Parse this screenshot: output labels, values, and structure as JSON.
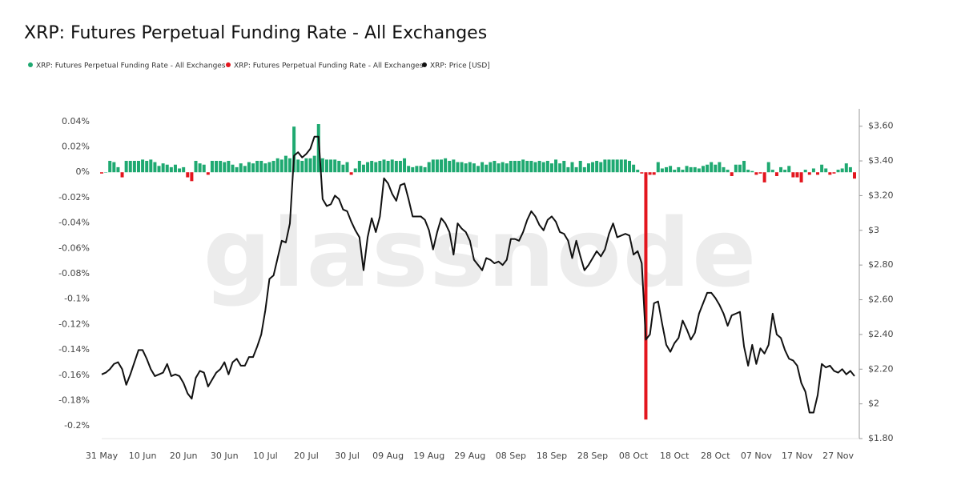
{
  "chart_data": {
    "type": "bar",
    "title": "XRP: Futures Perpetual Funding Rate - All Exchanges",
    "watermark": "glassnode",
    "categories": [
      "31 May",
      null,
      null,
      null,
      null,
      null,
      null,
      null,
      null,
      null,
      "10 Jun",
      null,
      null,
      null,
      null,
      null,
      null,
      null,
      null,
      null,
      "20 Jun",
      null,
      null,
      null,
      null,
      null,
      null,
      null,
      null,
      null,
      "30 Jun",
      null,
      null,
      null,
      null,
      null,
      null,
      null,
      null,
      null,
      "10 Jul",
      null,
      null,
      null,
      null,
      null,
      null,
      null,
      null,
      null,
      "20 Jul",
      null,
      null,
      null,
      null,
      null,
      null,
      null,
      null,
      null,
      "30 Jul",
      null,
      null,
      null,
      null,
      null,
      null,
      null,
      null,
      null,
      "09 Aug",
      null,
      null,
      null,
      null,
      null,
      null,
      null,
      null,
      null,
      "19 Aug",
      null,
      null,
      null,
      null,
      null,
      null,
      null,
      null,
      null,
      "29 Aug",
      null,
      null,
      null,
      null,
      null,
      null,
      null,
      null,
      null,
      "08 Sep",
      null,
      null,
      null,
      null,
      null,
      null,
      null,
      null,
      null,
      "18 Sep",
      null,
      null,
      null,
      null,
      null,
      null,
      null,
      null,
      null,
      "28 Sep",
      null,
      null,
      null,
      null,
      null,
      null,
      null,
      null,
      null,
      "08 Oct",
      null,
      null,
      null,
      null,
      null,
      null,
      null,
      null,
      null,
      "18 Oct",
      null,
      null,
      null,
      null,
      null,
      null,
      null,
      null,
      null,
      "28 Oct",
      null,
      null,
      null,
      null,
      null,
      null,
      null,
      null,
      null,
      "07 Nov",
      null,
      null,
      null,
      null,
      null,
      null,
      null,
      null,
      null,
      "17 Nov",
      null,
      null,
      null,
      null,
      null,
      null,
      null,
      null,
      null,
      "27 Nov",
      null,
      null,
      null,
      null
    ],
    "series": [
      {
        "name": "XRP: Futures Perpetual Funding Rate - All Exchanges",
        "type": "bar",
        "color": "#1fa971",
        "values": [
          null,
          0,
          0.009,
          0.008,
          0.004,
          null,
          0.009,
          0.009,
          0.009,
          0.009,
          0.01,
          0.009,
          0.01,
          0.008,
          0.005,
          0.007,
          0.006,
          0.004,
          0.006,
          0.003,
          0.004,
          null,
          null,
          0.009,
          0.007,
          0.006,
          null,
          0.009,
          0.009,
          0.009,
          0.008,
          0.009,
          0.006,
          0.004,
          0.007,
          0.005,
          0.008,
          0.007,
          0.009,
          0.009,
          0.007,
          0.008,
          0.009,
          0.011,
          0.01,
          0.013,
          0.011,
          0.036,
          0.01,
          0.009,
          0.011,
          0.011,
          0.013,
          0.038,
          0.011,
          0.01,
          0.01,
          0.01,
          0.009,
          0.006,
          0.008,
          null,
          0.003,
          0.009,
          0.006,
          0.008,
          0.009,
          0.008,
          0.009,
          0.01,
          0.009,
          0.01,
          0.009,
          0.009,
          0.011,
          0.005,
          0.004,
          0.005,
          0.005,
          0.004,
          0.008,
          0.01,
          0.01,
          0.01,
          0.011,
          0.009,
          0.01,
          0.008,
          0.008,
          0.007,
          0.008,
          0.007,
          0.005,
          0.008,
          0.006,
          0.008,
          0.009,
          0.007,
          0.008,
          0.007,
          0.009,
          0.009,
          0.009,
          0.01,
          0.009,
          0.009,
          0.008,
          0.009,
          0.008,
          0.009,
          0.007,
          0.01,
          0.007,
          0.009,
          0.004,
          0.008,
          0.004,
          0.009,
          0.004,
          0.007,
          0.008,
          0.009,
          0.008,
          0.01,
          0.01,
          0.01,
          0.01,
          0.01,
          0.01,
          0.009,
          0.006,
          0.002,
          null,
          null,
          null,
          null,
          0.008,
          0.003,
          0.004,
          0.005,
          0.002,
          0.004,
          0.002,
          0.005,
          0.004,
          0.004,
          0.003,
          0.005,
          0.006,
          0.008,
          0.006,
          0.008,
          0.004,
          0.002,
          null,
          0.006,
          0.006,
          0.009,
          0.002,
          0.001,
          null,
          null,
          null,
          0.008,
          0.002,
          null,
          0.004,
          0.002,
          0.005,
          null,
          null,
          null,
          0.002,
          null,
          0.003,
          null,
          0.006,
          0.003,
          null,
          null,
          0.002,
          0.003,
          0.007,
          0.004,
          null
        ]
      },
      {
        "name": "XRP: Futures Perpetual Funding Rate - All Exchanges",
        "type": "bar",
        "color": "#e3161e",
        "values": [
          -0.001,
          null,
          null,
          null,
          null,
          -0.004,
          null,
          null,
          null,
          null,
          null,
          null,
          null,
          null,
          null,
          null,
          null,
          null,
          null,
          null,
          null,
          -0.004,
          -0.007,
          null,
          null,
          null,
          -0.002,
          null,
          null,
          null,
          null,
          null,
          null,
          null,
          null,
          null,
          null,
          null,
          null,
          null,
          null,
          null,
          null,
          null,
          null,
          null,
          null,
          null,
          null,
          null,
          null,
          null,
          null,
          null,
          null,
          null,
          null,
          null,
          null,
          null,
          null,
          -0.002,
          null,
          null,
          null,
          null,
          null,
          null,
          null,
          null,
          null,
          null,
          null,
          null,
          null,
          null,
          null,
          null,
          null,
          null,
          null,
          null,
          null,
          null,
          null,
          null,
          null,
          null,
          null,
          null,
          null,
          null,
          null,
          null,
          null,
          null,
          null,
          null,
          null,
          null,
          null,
          null,
          null,
          null,
          null,
          null,
          null,
          null,
          null,
          null,
          null,
          null,
          null,
          null,
          null,
          null,
          null,
          null,
          null,
          null,
          null,
          null,
          null,
          null,
          null,
          null,
          null,
          null,
          null,
          null,
          null,
          null,
          -0.001,
          -0.195,
          -0.002,
          -0.002,
          null,
          null,
          null,
          null,
          null,
          null,
          null,
          null,
          null,
          null,
          null,
          null,
          null,
          null,
          null,
          null,
          null,
          null,
          -0.003,
          null,
          null,
          null,
          null,
          null,
          -0.002,
          -0.001,
          -0.008,
          null,
          null,
          -0.003,
          null,
          null,
          null,
          -0.004,
          -0.004,
          -0.008,
          null,
          -0.002,
          null,
          -0.002,
          null,
          null,
          -0.002,
          -0.001,
          null,
          null,
          null,
          null,
          -0.005
        ]
      },
      {
        "name": "XRP: Price [USD]",
        "type": "line",
        "axis": "y2",
        "color": "#111111",
        "values": [
          2.17,
          2.18,
          2.2,
          2.23,
          2.24,
          2.2,
          2.11,
          2.17,
          2.24,
          2.31,
          2.31,
          2.26,
          2.2,
          2.16,
          2.17,
          2.18,
          2.23,
          2.16,
          2.17,
          2.16,
          2.12,
          2.06,
          2.03,
          2.15,
          2.19,
          2.18,
          2.1,
          2.14,
          2.18,
          2.2,
          2.24,
          2.17,
          2.24,
          2.26,
          2.22,
          2.22,
          2.27,
          2.27,
          2.33,
          2.4,
          2.54,
          2.72,
          2.74,
          2.84,
          2.94,
          2.93,
          3.04,
          3.43,
          3.45,
          3.42,
          3.44,
          3.47,
          3.54,
          3.54,
          3.18,
          3.14,
          3.15,
          3.2,
          3.18,
          3.12,
          3.11,
          3.05,
          3.0,
          2.96,
          2.77,
          2.96,
          3.07,
          2.99,
          3.08,
          3.3,
          3.27,
          3.21,
          3.17,
          3.26,
          3.27,
          3.18,
          3.08,
          3.08,
          3.08,
          3.06,
          3.0,
          2.89,
          2.99,
          3.07,
          3.04,
          2.99,
          2.86,
          3.04,
          3.01,
          2.99,
          2.94,
          2.83,
          2.8,
          2.77,
          2.84,
          2.83,
          2.81,
          2.82,
          2.8,
          2.83,
          2.95,
          2.95,
          2.94,
          2.99,
          3.06,
          3.11,
          3.08,
          3.03,
          3.0,
          3.06,
          3.08,
          3.05,
          2.99,
          2.98,
          2.94,
          2.84,
          2.94,
          2.85,
          2.77,
          2.8,
          2.84,
          2.88,
          2.85,
          2.89,
          2.98,
          3.04,
          2.96,
          2.97,
          2.98,
          2.97,
          2.86,
          2.88,
          2.81,
          2.37,
          2.4,
          2.58,
          2.59,
          2.46,
          2.34,
          2.3,
          2.35,
          2.38,
          2.48,
          2.43,
          2.37,
          2.41,
          2.52,
          2.58,
          2.64,
          2.64,
          2.61,
          2.57,
          2.52,
          2.45,
          2.51,
          2.52,
          2.53,
          2.33,
          2.22,
          2.34,
          2.23,
          2.32,
          2.29,
          2.34,
          2.52,
          2.4,
          2.38,
          2.31,
          2.26,
          2.25,
          2.22,
          2.12,
          2.07,
          1.95,
          1.95,
          2.05,
          2.23,
          2.21,
          2.22,
          2.19,
          2.18,
          2.2,
          2.17,
          2.19,
          2.16
        ]
      }
    ],
    "ylim": [
      -0.21,
      0.05
    ],
    "yticks": [
      {
        "value": 0.04,
        "label": "0.04%"
      },
      {
        "value": 0.02,
        "label": "0.02%"
      },
      {
        "value": 0,
        "label": "0%"
      },
      {
        "value": -0.02,
        "label": "-0.02%"
      },
      {
        "value": -0.04,
        "label": "-0.04%"
      },
      {
        "value": -0.06,
        "label": "-0.06%"
      },
      {
        "value": -0.08,
        "label": "-0.08%"
      },
      {
        "value": -0.1,
        "label": "-0.1%"
      },
      {
        "value": -0.12,
        "label": "-0.12%"
      },
      {
        "value": -0.14,
        "label": "-0.14%"
      },
      {
        "value": -0.16,
        "label": "-0.16%"
      },
      {
        "value": -0.18,
        "label": "-0.18%"
      },
      {
        "value": -0.2,
        "label": "-0.2%"
      }
    ],
    "y2lim": [
      1.8,
      3.7
    ],
    "y2ticks": [
      {
        "value": 3.6,
        "label": "$3.60"
      },
      {
        "value": 3.4,
        "label": "$3.40"
      },
      {
        "value": 3.2,
        "label": "$3.20"
      },
      {
        "value": 3,
        "label": "$3"
      },
      {
        "value": 2.8,
        "label": "$2.80"
      },
      {
        "value": 2.6,
        "label": "$2.60"
      },
      {
        "value": 2.4,
        "label": "$2.40"
      },
      {
        "value": 2.2,
        "label": "$2.20"
      },
      {
        "value": 2,
        "label": "$2"
      },
      {
        "value": 1.8,
        "label": "$1.80"
      }
    ],
    "grid": false,
    "legend": "top-left"
  }
}
